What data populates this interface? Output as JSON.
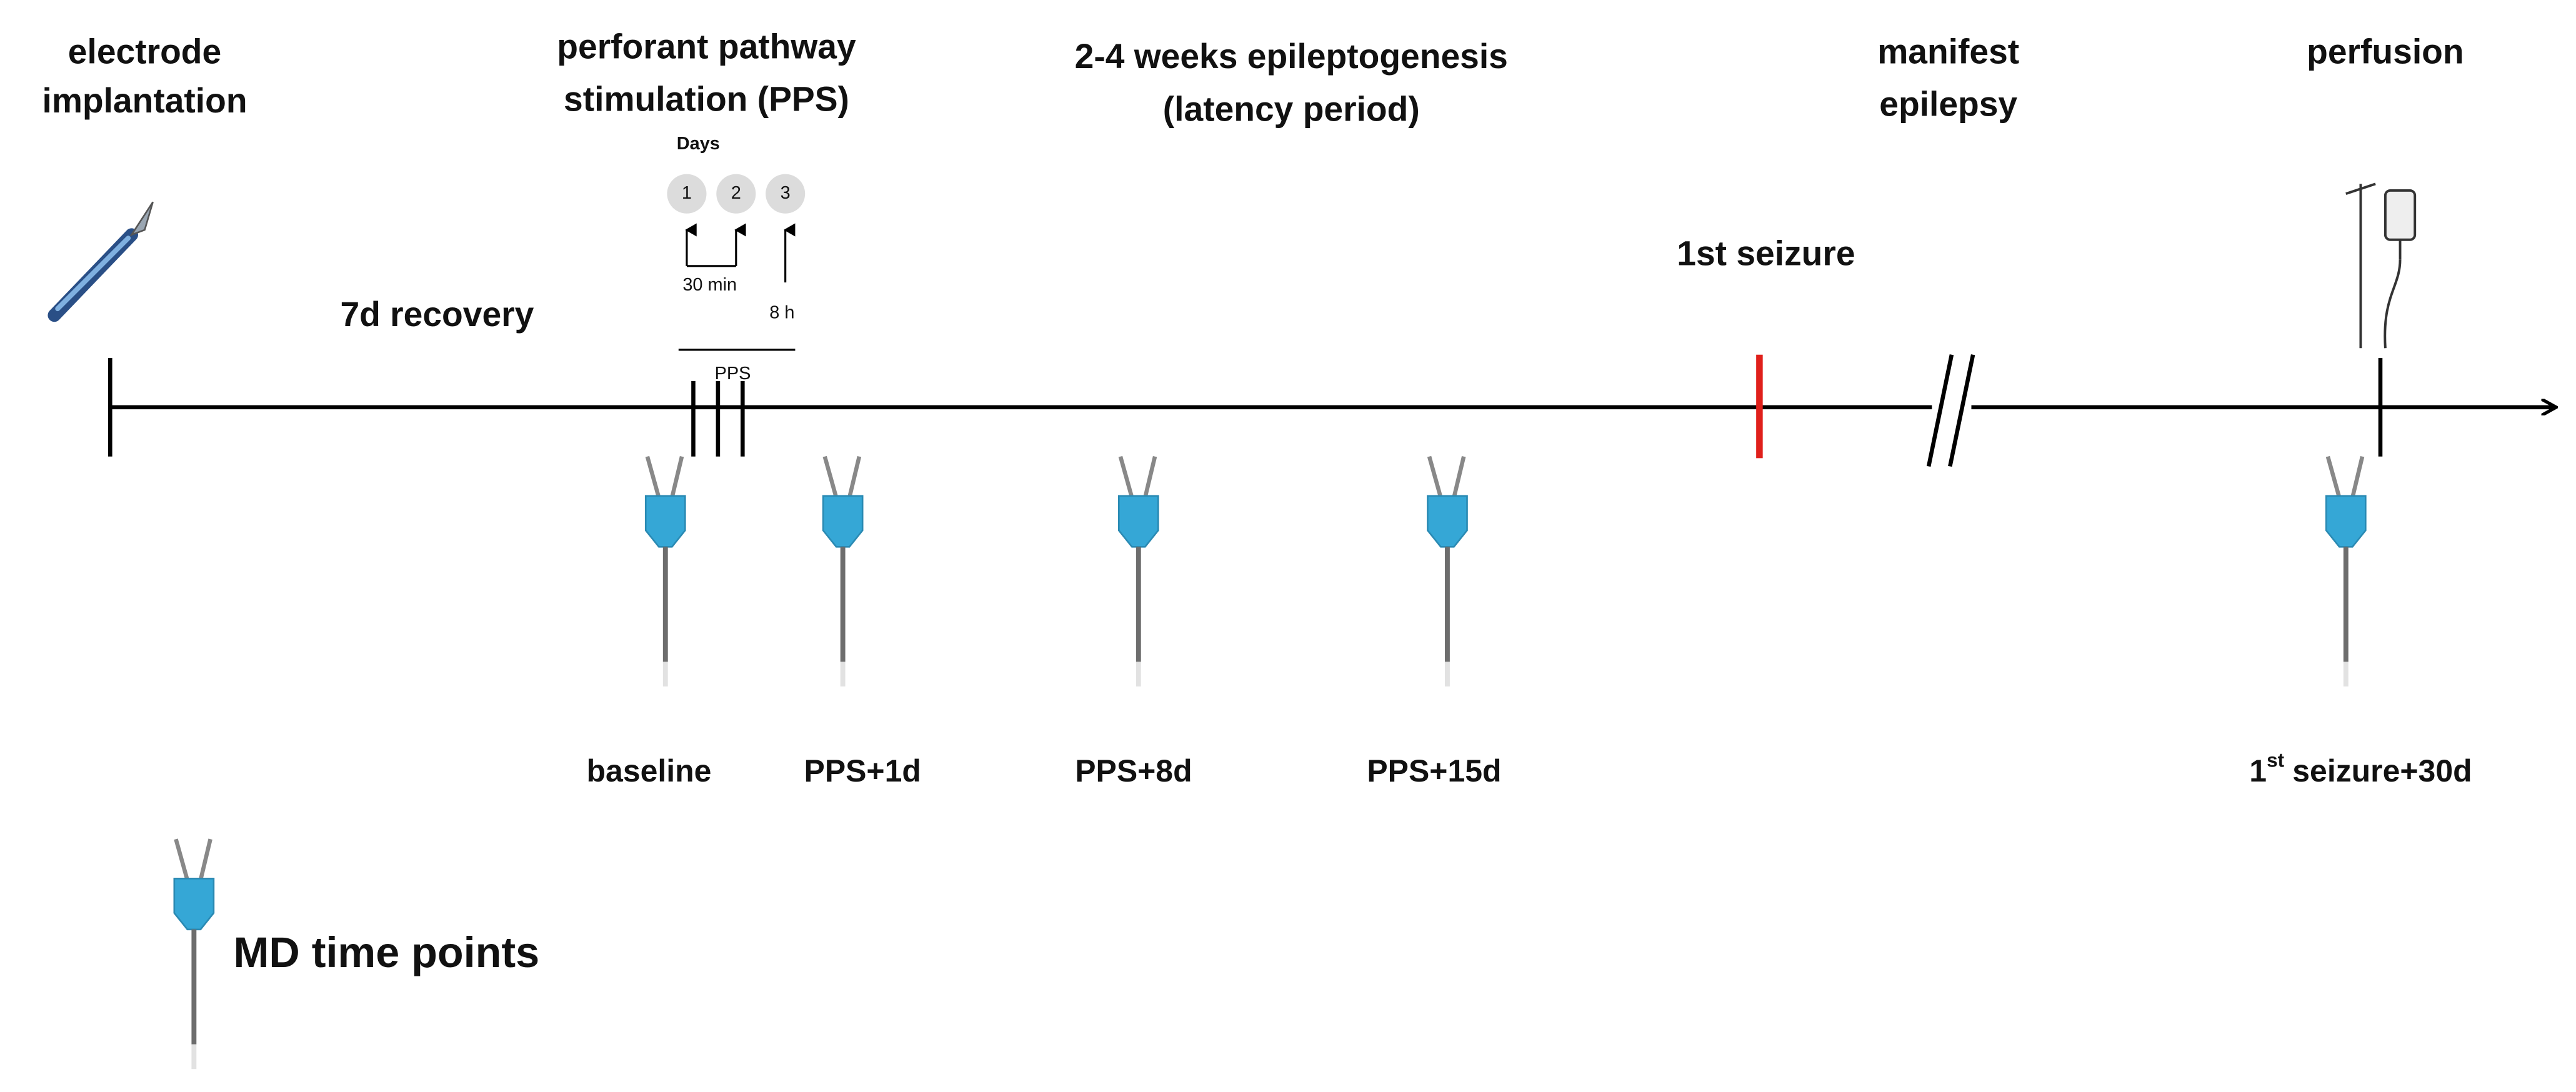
{
  "header_labels": [
    {
      "lines": [
        "electrode",
        "implantation"
      ]
    },
    {
      "lines": [
        "perforant pathway",
        "stimulation (PPS)"
      ]
    },
    {
      "lines": [
        "2-4 weeks epileptogenesis",
        "(latency period)"
      ]
    },
    {
      "lines": [
        "manifest",
        "epilepsy"
      ]
    },
    {
      "lines": [
        "perfusion"
      ]
    }
  ],
  "phase_labels": {
    "recovery": "7d recovery",
    "first_seizure": "1st seizure"
  },
  "pps_inset": {
    "title": "Days",
    "days": [
      "1",
      "2",
      "3"
    ],
    "interval_1": "30 min",
    "interval_2": "8 h",
    "label": "PPS"
  },
  "time_points": [
    "baseline",
    "PPS+1d",
    "PPS+8d",
    "PPS+15d"
  ],
  "last_time_point": {
    "base": "1",
    "sup": "st",
    "rest": "seizure+30d"
  },
  "legend": "MD time points"
}
